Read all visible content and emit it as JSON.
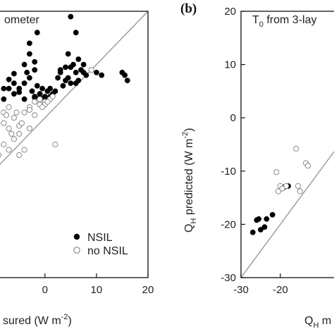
{
  "chart_data": [
    {
      "panel": "a",
      "type": "scatter",
      "title": "ometer",
      "xlabel": "sured (W m",
      "xlabel_sup": "-2",
      "xlabel_close": ")",
      "xlim": [
        -9,
        20
      ],
      "ylim": [
        -30,
        20
      ],
      "xticks": [
        0,
        10,
        20
      ],
      "xtick_labels": [
        "0",
        "10",
        "20"
      ],
      "legend_position": "bottom-right",
      "series": [
        {
          "name": "NSIL",
          "marker": "filled-circle",
          "points": [
            [
              -8,
              5.5
            ],
            [
              -7,
              5.5
            ],
            [
              -6,
              6.5
            ],
            [
              -5,
              5.5
            ],
            [
              -4,
              6.5
            ],
            [
              -3,
              7.5
            ],
            [
              -3.5,
              8.5
            ],
            [
              -6,
              8.3
            ],
            [
              -7,
              7.2
            ],
            [
              -4,
              10
            ],
            [
              -3,
              12
            ],
            [
              -2,
              9
            ],
            [
              -3,
              14
            ],
            [
              -2.5,
              5
            ],
            [
              -1.5,
              6
            ],
            [
              -1,
              4.5
            ],
            [
              -0.5,
              5.5
            ],
            [
              0,
              4
            ],
            [
              0.5,
              5
            ],
            [
              1,
              5.5
            ],
            [
              1.5,
              4.5
            ],
            [
              2,
              5
            ],
            [
              -1,
              4.5
            ],
            [
              -2,
              4
            ],
            [
              0,
              3.5
            ],
            [
              1,
              4
            ],
            [
              -4,
              3.5
            ],
            [
              -6,
              4.5
            ],
            [
              -8,
              3.5
            ],
            [
              -5,
              4.8
            ],
            [
              -1,
              3.8
            ],
            [
              -2,
              3.8
            ],
            [
              -1.5,
              16
            ],
            [
              -2,
              10.5
            ],
            [
              5,
              19
            ],
            [
              6,
              16
            ],
            [
              4.5,
              12
            ],
            [
              3,
              9
            ],
            [
              3,
              8.5
            ],
            [
              3.5,
              6
            ],
            [
              2.5,
              7.5
            ],
            [
              4,
              9.5
            ],
            [
              4.5,
              7.5
            ],
            [
              5,
              9.5
            ],
            [
              5.5,
              10
            ],
            [
              6,
              8.5
            ],
            [
              6.5,
              11
            ],
            [
              6,
              6.5
            ],
            [
              7,
              9
            ],
            [
              7.5,
              8.5
            ],
            [
              8,
              8
            ],
            [
              7.5,
              10
            ],
            [
              6.5,
              7
            ],
            [
              5,
              6.5
            ],
            [
              4,
              7
            ],
            [
              11,
              8
            ],
            [
              10,
              8.5
            ],
            [
              15,
              8.5
            ],
            [
              15.5,
              8
            ],
            [
              16,
              7
            ]
          ]
        },
        {
          "name": "no NSIL",
          "marker": "open-circle",
          "points": [
            [
              -8,
              -1
            ],
            [
              -7,
              -2
            ],
            [
              -6,
              0
            ],
            [
              -5,
              -1.5
            ],
            [
              -4,
              1
            ],
            [
              -3,
              2
            ],
            [
              -2,
              0.5
            ],
            [
              -1,
              2.5
            ],
            [
              0,
              3
            ],
            [
              1,
              3.5
            ],
            [
              -6,
              -4
            ],
            [
              -8,
              -5
            ],
            [
              -5,
              -3
            ],
            [
              -4,
              -6
            ],
            [
              -3,
              1.5
            ],
            [
              -2,
              3
            ],
            [
              -1,
              3.5
            ],
            [
              -5.5,
              1
            ],
            [
              -7,
              2
            ],
            [
              -8,
              1
            ],
            [
              2,
              -5
            ],
            [
              -5,
              -7
            ],
            [
              -7,
              -6
            ],
            [
              -9,
              -7
            ],
            [
              -3,
              -2
            ],
            [
              -4.5,
              -1
            ],
            [
              0,
              2.5
            ],
            [
              0.5,
              3
            ],
            [
              -0.5,
              2
            ],
            [
              1.5,
              4
            ],
            [
              -6.5,
              -3
            ],
            [
              -7.5,
              0.5
            ],
            [
              9,
              9
            ]
          ]
        }
      ]
    },
    {
      "panel": "b",
      "panel_label": "(b)",
      "type": "scatter",
      "title": "T",
      "title_sub": "0",
      "title_rest": " from 3-lay",
      "xlabel": "Q",
      "xlabel_sub": "H",
      "xlabel_rest": " m",
      "ylabel": "Q",
      "ylabel_sub": "H",
      "ylabel_rest": " predicted (W m",
      "ylabel_sup": "-2",
      "ylabel_close": ")",
      "xlim": [
        -30,
        -6
      ],
      "ylim": [
        -30,
        20
      ],
      "xticks": [
        -30,
        -20
      ],
      "xtick_labels": [
        "-30",
        "-20"
      ],
      "yticks": [
        -30,
        -20,
        -10,
        0,
        10,
        20
      ],
      "ytick_labels": [
        "-30",
        "-20",
        "-10",
        "0",
        "10",
        "20"
      ],
      "series": [
        {
          "name": "NSIL",
          "marker": "filled-circle",
          "points": [
            [
              -27,
              -21.5
            ],
            [
              -26,
              -19.2
            ],
            [
              -25.5,
              -19
            ],
            [
              -25,
              -21
            ],
            [
              -24,
              -20.5
            ],
            [
              -23.5,
              -19
            ],
            [
              -22,
              -18.2
            ],
            [
              -19,
              -13
            ],
            [
              -18,
              -12.8
            ]
          ]
        },
        {
          "name": "no NSIL",
          "marker": "open-circle",
          "points": [
            [
              -21,
              -10.2
            ],
            [
              -20.5,
              -13.8
            ],
            [
              -20,
              -12.8
            ],
            [
              -19.5,
              -13.3
            ],
            [
              -18.5,
              -12.8
            ],
            [
              -16,
              -5.8
            ],
            [
              -15.5,
              -12.8
            ],
            [
              -15,
              -13.8
            ],
            [
              -13.5,
              -8.5
            ],
            [
              -13,
              -9
            ]
          ]
        }
      ]
    }
  ],
  "legend": {
    "entries": [
      {
        "label": "NSIL",
        "marker": "filled-circle"
      },
      {
        "label": "no NSIL",
        "marker": "open-circle"
      }
    ]
  }
}
